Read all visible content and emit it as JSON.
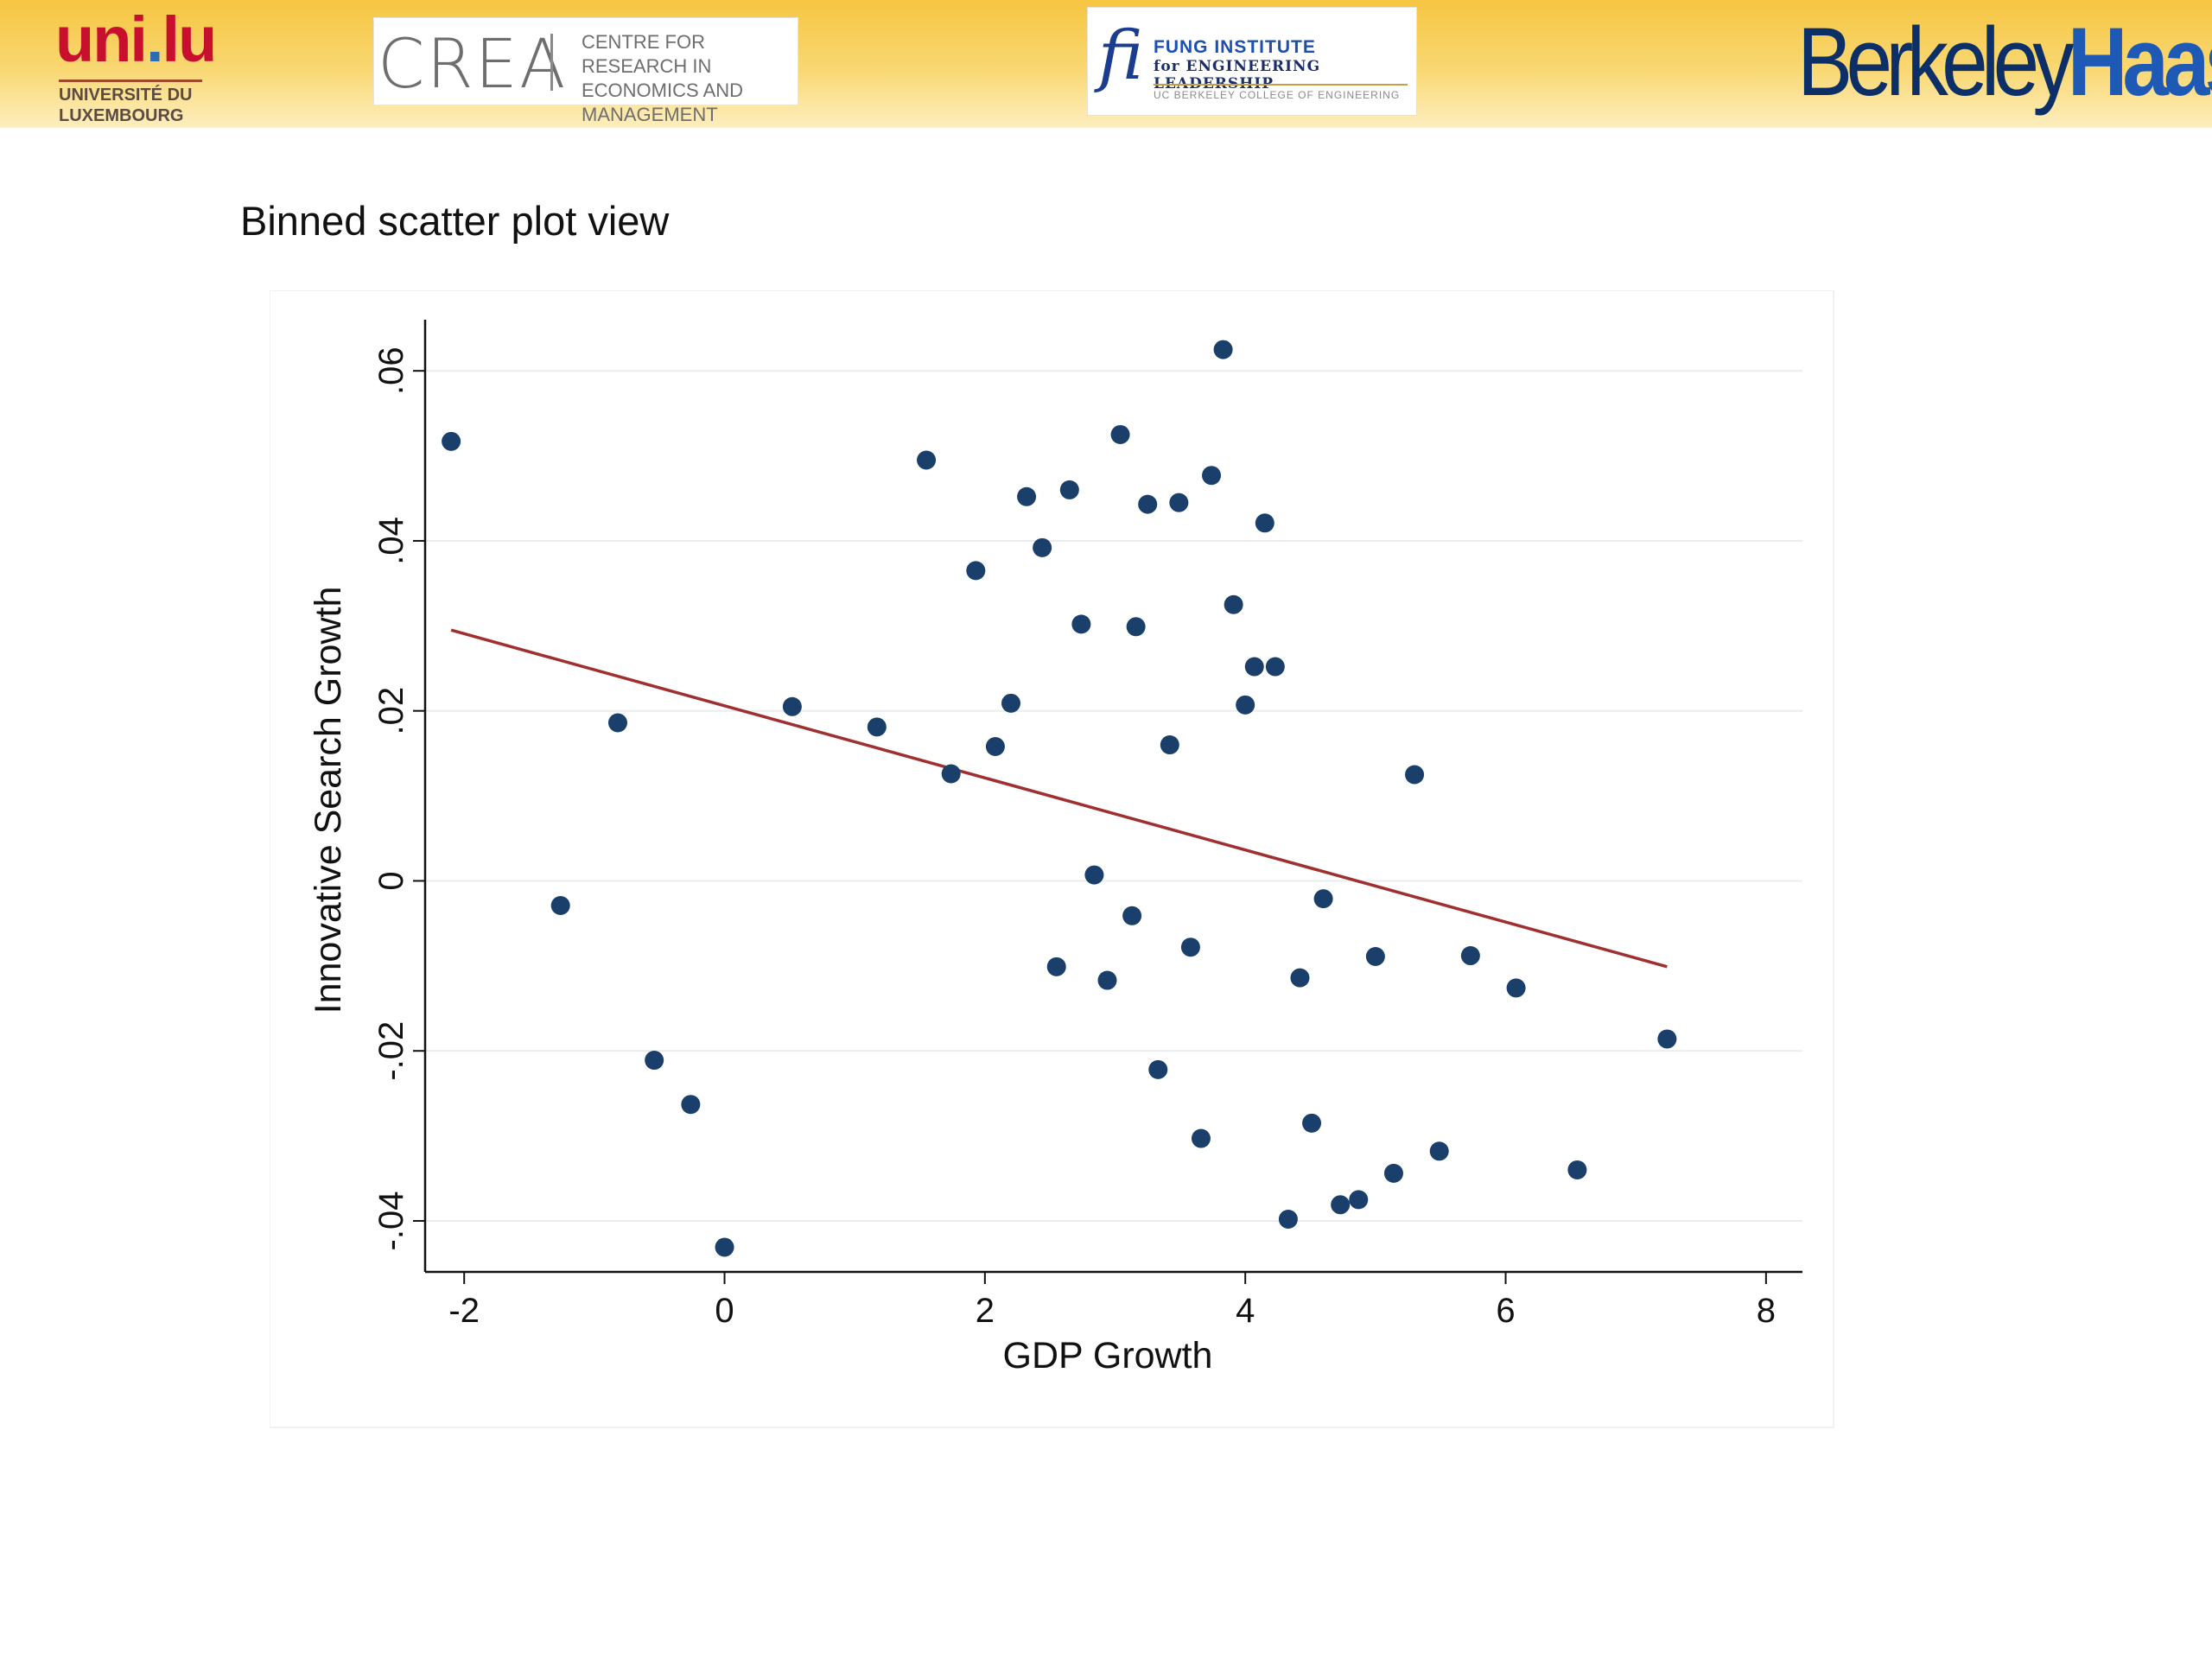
{
  "header": {
    "logos": [
      {
        "name": "uni.lu",
        "text": "UNIVERSITÉ DU LUXEMBOURG"
      },
      {
        "name": "CREA",
        "text": "CENTRE FOR RESEARCH IN ECONOMICS AND MANAGEMENT"
      },
      {
        "name": "FUNG INSTITUTE",
        "text": "FUNG INSTITUTE for ENGINEERING LEADERSHIP UC BERKELEY COLLEGE OF ENGINEERING"
      },
      {
        "name": "BerkeleyHaas",
        "text": "BerkeleyHaas"
      }
    ],
    "colors": {
      "banner_top": "#f6c542",
      "banner_bottom": "#fdeebf"
    }
  },
  "slide": {
    "title": "Binned scatter plot view"
  },
  "chart_data": {
    "type": "scatter",
    "title": "",
    "xlabel": "GDP Growth",
    "ylabel": "Innovative Search Growth",
    "xlim": [
      -2.3,
      8.2
    ],
    "ylim": [
      -0.046,
      0.065
    ],
    "xticks": [
      -2,
      0,
      2,
      4,
      6,
      8
    ],
    "xtick_labels": [
      "-2",
      "0",
      "2",
      "4",
      "6",
      "8"
    ],
    "yticks": [
      -0.04,
      -0.02,
      0,
      0.02,
      0.04,
      0.06
    ],
    "ytick_labels": [
      "-.04",
      "-.02",
      "0",
      ".02",
      ".04",
      ".06"
    ],
    "grid": "horizontal",
    "legend": "none",
    "marker_color": "#1a3f6b",
    "fit_line_color": "#a03030",
    "points": [
      {
        "x": -2.1,
        "y": 0.0517
      },
      {
        "x": -1.26,
        "y": -0.0029
      },
      {
        "x": -0.82,
        "y": 0.0186
      },
      {
        "x": -0.54,
        "y": -0.0211
      },
      {
        "x": -0.26,
        "y": -0.0263
      },
      {
        "x": 0.0,
        "y": -0.0431
      },
      {
        "x": 0.52,
        "y": 0.0205
      },
      {
        "x": 1.17,
        "y": 0.0181
      },
      {
        "x": 1.55,
        "y": 0.0495
      },
      {
        "x": 1.74,
        "y": 0.0126
      },
      {
        "x": 1.93,
        "y": 0.0365
      },
      {
        "x": 2.08,
        "y": 0.0158
      },
      {
        "x": 2.2,
        "y": 0.0209
      },
      {
        "x": 2.32,
        "y": 0.0452
      },
      {
        "x": 2.44,
        "y": 0.0392
      },
      {
        "x": 2.55,
        "y": -0.0101
      },
      {
        "x": 2.65,
        "y": 0.046
      },
      {
        "x": 2.74,
        "y": 0.0302
      },
      {
        "x": 2.84,
        "y": 0.0007
      },
      {
        "x": 2.94,
        "y": -0.0117
      },
      {
        "x": 3.04,
        "y": 0.0525
      },
      {
        "x": 3.13,
        "y": -0.0041
      },
      {
        "x": 3.16,
        "y": 0.0299
      },
      {
        "x": 3.25,
        "y": 0.0443
      },
      {
        "x": 3.33,
        "y": -0.0222
      },
      {
        "x": 3.42,
        "y": 0.016
      },
      {
        "x": 3.49,
        "y": 0.0445
      },
      {
        "x": 3.58,
        "y": -0.0078
      },
      {
        "x": 3.66,
        "y": -0.0303
      },
      {
        "x": 3.74,
        "y": 0.0477
      },
      {
        "x": 3.83,
        "y": 0.0625
      },
      {
        "x": 3.91,
        "y": 0.0325
      },
      {
        "x": 4.0,
        "y": 0.0207
      },
      {
        "x": 4.07,
        "y": 0.0252
      },
      {
        "x": 4.15,
        "y": 0.0421
      },
      {
        "x": 4.23,
        "y": 0.0252
      },
      {
        "x": 4.33,
        "y": -0.0398
      },
      {
        "x": 4.42,
        "y": -0.0114
      },
      {
        "x": 4.51,
        "y": -0.0285
      },
      {
        "x": 4.6,
        "y": -0.0021
      },
      {
        "x": 4.73,
        "y": -0.0381
      },
      {
        "x": 4.87,
        "y": -0.0375
      },
      {
        "x": 5.0,
        "y": -0.0089
      },
      {
        "x": 5.14,
        "y": -0.0344
      },
      {
        "x": 5.3,
        "y": 0.0125
      },
      {
        "x": 5.49,
        "y": -0.0318
      },
      {
        "x": 5.73,
        "y": -0.0088
      },
      {
        "x": 6.08,
        "y": -0.0126
      },
      {
        "x": 6.55,
        "y": -0.034
      },
      {
        "x": 7.24,
        "y": -0.0186
      }
    ],
    "fit_line": {
      "x": [
        -2.1,
        7.24
      ],
      "y": [
        0.0295,
        -0.0101
      ]
    }
  }
}
